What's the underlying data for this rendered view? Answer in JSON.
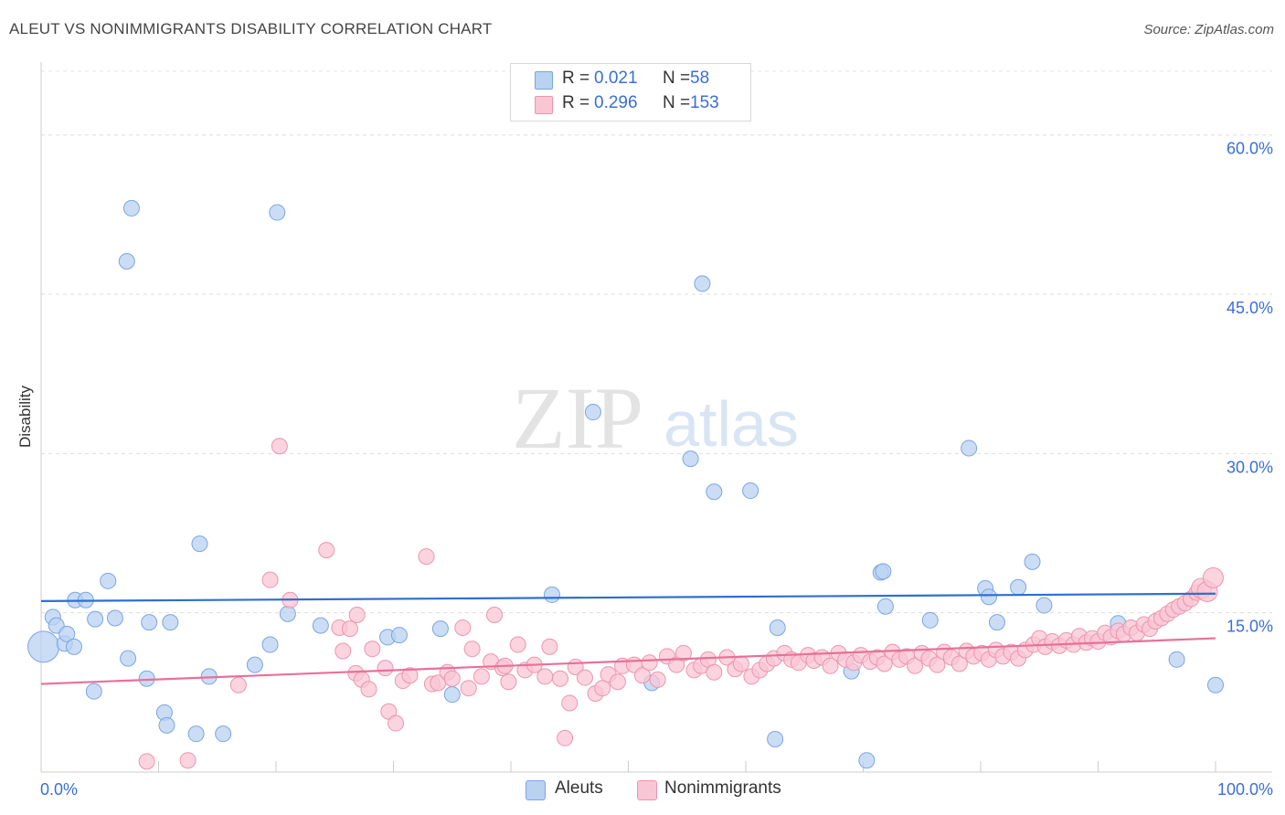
{
  "title": "ALEUT VS NONIMMIGRANTS DISABILITY CORRELATION CHART",
  "source": "Source: ZipAtlas.com",
  "watermark": {
    "zip": "ZIP",
    "atlas": "atlas"
  },
  "legend": {
    "r_label": "R =",
    "n_label": "N =",
    "rows": [
      {
        "r": "0.021",
        "n": "58",
        "color": "#b9d2f2",
        "border": "#7aa6e0"
      },
      {
        "r": "0.296",
        "n": "153",
        "color": "#f9c6d4",
        "border": "#ec95ae"
      }
    ]
  },
  "chart_data": {
    "type": "scatter",
    "title": "ALEUT VS NONIMMIGRANTS DISABILITY CORRELATION CHART",
    "xlabel": "",
    "ylabel": "Disability",
    "x_tick_labels": [
      "0.0%",
      "100.0%"
    ],
    "y_tick_labels": [
      "15.0%",
      "30.0%",
      "45.0%",
      "60.0%"
    ],
    "xlim": [
      0,
      100
    ],
    "ylim": [
      0,
      60
    ],
    "grid": true,
    "legend_position": "top-center",
    "series": [
      {
        "name": "Aleuts",
        "color": "#7aa6e0",
        "fill": "#b9d2f2",
        "trend": [
          [
            0,
            16.1
          ],
          [
            100,
            16.8
          ]
        ],
        "trend_color": "#2f6fd0",
        "points": [
          [
            0.2,
            11.8
          ],
          [
            1,
            14.6
          ],
          [
            1.3,
            13.8
          ],
          [
            2,
            12.1
          ],
          [
            2.2,
            13.0
          ],
          [
            2.8,
            11.8
          ],
          [
            2.9,
            16.2
          ],
          [
            3.8,
            16.2
          ],
          [
            4.5,
            7.6
          ],
          [
            4.6,
            14.4
          ],
          [
            5.7,
            18.0
          ],
          [
            6.3,
            14.5
          ],
          [
            7.7,
            53.1
          ],
          [
            7.4,
            10.7
          ],
          [
            7.3,
            48.1
          ],
          [
            9,
            8.8
          ],
          [
            9.2,
            14.1
          ],
          [
            10.5,
            5.6
          ],
          [
            10.7,
            4.4
          ],
          [
            11,
            14.1
          ],
          [
            13.2,
            3.6
          ],
          [
            13.5,
            21.5
          ],
          [
            14.3,
            9.0
          ],
          [
            15.5,
            3.6
          ],
          [
            18.2,
            10.1
          ],
          [
            19.5,
            12.0
          ],
          [
            20.1,
            52.7
          ],
          [
            21,
            14.9
          ],
          [
            23.8,
            13.8
          ],
          [
            29.5,
            12.7
          ],
          [
            30.5,
            12.9
          ],
          [
            34,
            13.5
          ],
          [
            35,
            7.3
          ],
          [
            43.5,
            16.7
          ],
          [
            47,
            33.9
          ],
          [
            52,
            8.4
          ],
          [
            55.3,
            29.5
          ],
          [
            56.3,
            46.0
          ],
          [
            57.3,
            26.4
          ],
          [
            60.4,
            26.5
          ],
          [
            62.5,
            3.1
          ],
          [
            62.7,
            13.6
          ],
          [
            69,
            9.5
          ],
          [
            70.3,
            1.1
          ],
          [
            71.5,
            18.8
          ],
          [
            71.7,
            18.9
          ],
          [
            71.9,
            15.6
          ],
          [
            75.7,
            14.3
          ],
          [
            79,
            30.5
          ],
          [
            80.4,
            17.3
          ],
          [
            80.7,
            16.5
          ],
          [
            81.4,
            14.1
          ],
          [
            83.2,
            17.4
          ],
          [
            84.4,
            19.8
          ],
          [
            85.4,
            15.7
          ],
          [
            91.7,
            14.0
          ],
          [
            96.7,
            10.6
          ],
          [
            100,
            8.2
          ]
        ]
      },
      {
        "name": "Nonimmigrants",
        "color": "#ec95ae",
        "fill": "#f9c6d4",
        "trend": [
          [
            0,
            8.3
          ],
          [
            100,
            12.6
          ]
        ],
        "trend_color": "#e8709a",
        "points": [
          [
            9,
            1.0
          ],
          [
            12.5,
            1.1
          ],
          [
            16.8,
            8.2
          ],
          [
            19.5,
            18.1
          ],
          [
            20.3,
            30.7
          ],
          [
            21.2,
            16.2
          ],
          [
            24.3,
            20.9
          ],
          [
            25.4,
            13.6
          ],
          [
            25.7,
            11.4
          ],
          [
            26.3,
            13.5
          ],
          [
            26.8,
            9.3
          ],
          [
            26.9,
            14.8
          ],
          [
            27.3,
            8.7
          ],
          [
            27.9,
            7.8
          ],
          [
            28.2,
            11.6
          ],
          [
            29.3,
            9.8
          ],
          [
            29.6,
            5.7
          ],
          [
            30.2,
            4.6
          ],
          [
            30.8,
            8.6
          ],
          [
            31.4,
            9.1
          ],
          [
            32.8,
            20.3
          ],
          [
            33.3,
            8.3
          ],
          [
            33.8,
            8.4
          ],
          [
            34.6,
            9.4
          ],
          [
            35,
            8.8
          ],
          [
            35.9,
            13.6
          ],
          [
            36.4,
            7.9
          ],
          [
            36.7,
            11.6
          ],
          [
            37.5,
            9.0
          ],
          [
            38.3,
            10.4
          ],
          [
            38.6,
            14.8
          ],
          [
            39.3,
            9.8
          ],
          [
            39.5,
            10.0
          ],
          [
            39.8,
            8.5
          ],
          [
            40.6,
            12.0
          ],
          [
            41.2,
            9.6
          ],
          [
            42,
            10.1
          ],
          [
            42.9,
            9.0
          ],
          [
            43.3,
            11.8
          ],
          [
            44.2,
            8.8
          ],
          [
            44.6,
            3.2
          ],
          [
            45,
            6.5
          ],
          [
            45.5,
            9.9
          ],
          [
            46.3,
            8.9
          ],
          [
            47.2,
            7.4
          ],
          [
            47.8,
            7.9
          ],
          [
            48.3,
            9.2
          ],
          [
            49.1,
            8.5
          ],
          [
            49.5,
            10.0
          ],
          [
            50.5,
            10.1
          ],
          [
            51.2,
            9.1
          ],
          [
            51.8,
            10.3
          ],
          [
            52.5,
            8.7
          ],
          [
            53.3,
            10.9
          ],
          [
            54.1,
            10.1
          ],
          [
            54.7,
            11.2
          ],
          [
            55.6,
            9.6
          ],
          [
            56.2,
            10.0
          ],
          [
            56.8,
            10.6
          ],
          [
            57.3,
            9.4
          ],
          [
            58.4,
            10.8
          ],
          [
            59.1,
            9.7
          ],
          [
            59.6,
            10.2
          ],
          [
            60.5,
            9.0
          ],
          [
            61.2,
            9.6
          ],
          [
            61.8,
            10.2
          ],
          [
            62.4,
            10.7
          ],
          [
            63.3,
            11.2
          ],
          [
            63.9,
            10.6
          ],
          [
            64.5,
            10.3
          ],
          [
            65.3,
            11.0
          ],
          [
            65.8,
            10.5
          ],
          [
            66.5,
            10.8
          ],
          [
            67.2,
            10.0
          ],
          [
            67.9,
            11.2
          ],
          [
            68.5,
            10.6
          ],
          [
            69.2,
            10.3
          ],
          [
            69.8,
            11.0
          ],
          [
            70.6,
            10.4
          ],
          [
            71.2,
            10.8
          ],
          [
            71.8,
            10.2
          ],
          [
            72.5,
            11.3
          ],
          [
            73.1,
            10.6
          ],
          [
            73.7,
            10.9
          ],
          [
            74.4,
            10.0
          ],
          [
            75,
            11.2
          ],
          [
            75.6,
            10.7
          ],
          [
            76.3,
            10.1
          ],
          [
            76.9,
            11.3
          ],
          [
            77.5,
            10.8
          ],
          [
            78.2,
            10.2
          ],
          [
            78.8,
            11.4
          ],
          [
            79.4,
            10.9
          ],
          [
            80.1,
            11.2
          ],
          [
            80.7,
            10.6
          ],
          [
            81.3,
            11.5
          ],
          [
            81.9,
            10.9
          ],
          [
            82.6,
            11.3
          ],
          [
            83.2,
            10.7
          ],
          [
            83.8,
            11.5
          ],
          [
            84.5,
            12.0
          ],
          [
            85,
            12.6
          ],
          [
            85.5,
            11.8
          ],
          [
            86.1,
            12.3
          ],
          [
            86.7,
            11.9
          ],
          [
            87.3,
            12.4
          ],
          [
            87.9,
            12.0
          ],
          [
            88.4,
            12.8
          ],
          [
            89,
            12.2
          ],
          [
            89.5,
            12.6
          ],
          [
            90,
            12.3
          ],
          [
            90.6,
            13.1
          ],
          [
            91.1,
            12.7
          ],
          [
            91.7,
            13.3
          ],
          [
            92.2,
            13.0
          ],
          [
            92.8,
            13.6
          ],
          [
            93.3,
            13.1
          ],
          [
            93.9,
            13.9
          ],
          [
            94.4,
            13.5
          ],
          [
            94.9,
            14.2
          ],
          [
            95.4,
            14.5
          ],
          [
            95.9,
            14.9
          ],
          [
            96.4,
            15.3
          ],
          [
            96.9,
            15.6
          ],
          [
            97.4,
            15.9
          ],
          [
            97.9,
            16.3
          ],
          [
            98.4,
            16.9
          ],
          [
            98.8,
            17.3
          ],
          [
            99.3,
            17.0
          ],
          [
            99.8,
            18.3
          ]
        ]
      }
    ]
  },
  "bottom_legend": [
    {
      "label": "Aleuts",
      "color": "#b9d2f2",
      "border": "#7aa6e0"
    },
    {
      "label": "Nonimmigrants",
      "color": "#f9c6d4",
      "border": "#ec95ae"
    }
  ]
}
